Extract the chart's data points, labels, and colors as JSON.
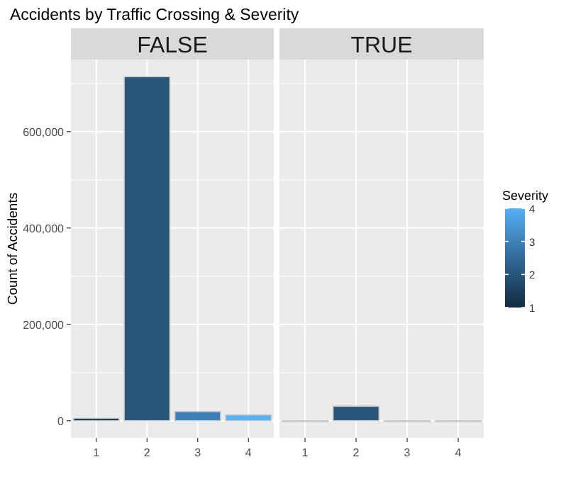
{
  "chart_data": [
    {
      "type": "bar",
      "title": "Accidents by Traffic Crossing & Severity",
      "subtitle": "FALSE",
      "ylabel": "Count of Accidents",
      "categories": [
        "1",
        "2",
        "3",
        "4"
      ],
      "values": [
        5000,
        714000,
        19000,
        12000
      ],
      "colors": [
        "#132b43",
        "#28557a",
        "#3b7fb8",
        "#56b1f7"
      ],
      "ylim": [
        -35700,
        749700
      ],
      "yticks": [
        {
          "value": 0,
          "label": "0"
        },
        {
          "value": 200000,
          "label": "200,000"
        },
        {
          "value": 400000,
          "label": "400,000"
        },
        {
          "value": 600000,
          "label": "600,000"
        }
      ],
      "grid": true
    },
    {
      "type": "bar",
      "subtitle": "TRUE",
      "categories": [
        "1",
        "2",
        "3",
        "4"
      ],
      "values": [
        0,
        30000,
        0,
        0
      ],
      "colors": [
        "#132b43",
        "#28557a",
        "#3b7fb8",
        "#56b1f7"
      ],
      "ylim": [
        -35700,
        749700
      ],
      "yticks": [
        0,
        200000,
        400000,
        600000
      ],
      "grid": true,
      "tick_labels": "x",
      "clabel": "Severity",
      "clim": [
        1,
        4
      ],
      "cticks": [
        1,
        2,
        3,
        4
      ]
    }
  ]
}
